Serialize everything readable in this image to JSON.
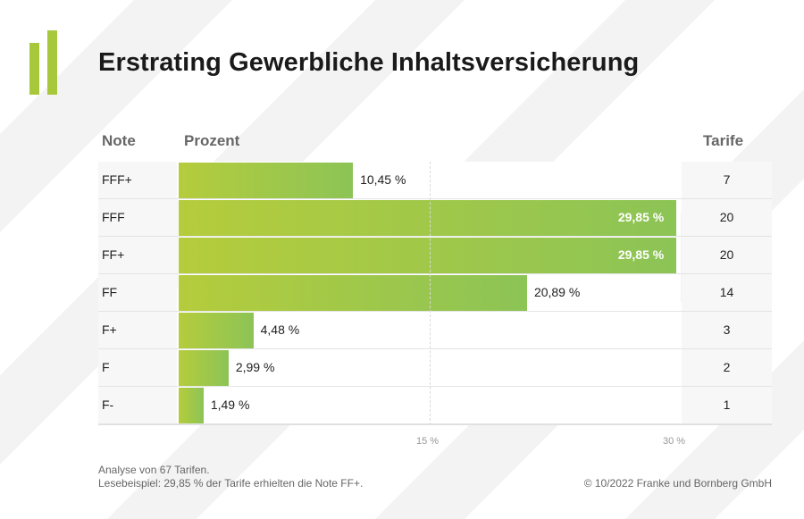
{
  "title": "Erstrating Gewerbliche Inhaltsversicherung",
  "headers": {
    "note": "Note",
    "prozent": "Prozent",
    "tarife": "Tarife"
  },
  "chart_data": {
    "type": "bar",
    "orientation": "horizontal",
    "title": "Erstrating Gewerbliche Inhaltsversicherung",
    "xlim": [
      0,
      30
    ],
    "x_ticks": [
      "15 %",
      "30 %"
    ],
    "categories": [
      "FFF+",
      "FFF",
      "FF+",
      "FF",
      "F+",
      "F",
      "F-"
    ],
    "values": [
      10.45,
      29.85,
      29.85,
      20.89,
      4.48,
      2.99,
      1.49
    ],
    "value_labels": [
      "10,45 %",
      "29,85 %",
      "29,85 %",
      "20,89 %",
      "4,48 %",
      "2,99 %",
      "1,49 %"
    ],
    "tarife": [
      "7",
      "20",
      "20",
      "14",
      "3",
      "2",
      "1"
    ],
    "colors": {
      "bar_start": "#b5cc3c",
      "bar_end": "#8cc456",
      "logo": "#a8c83c"
    }
  },
  "footnotes": [
    "Analyse von 67 Tarifen.",
    "Lesebeispiel: 29,85 % der Tarife erhielten die Note FF+."
  ],
  "copyright": "© 10/2022 Franke und Bornberg GmbH"
}
